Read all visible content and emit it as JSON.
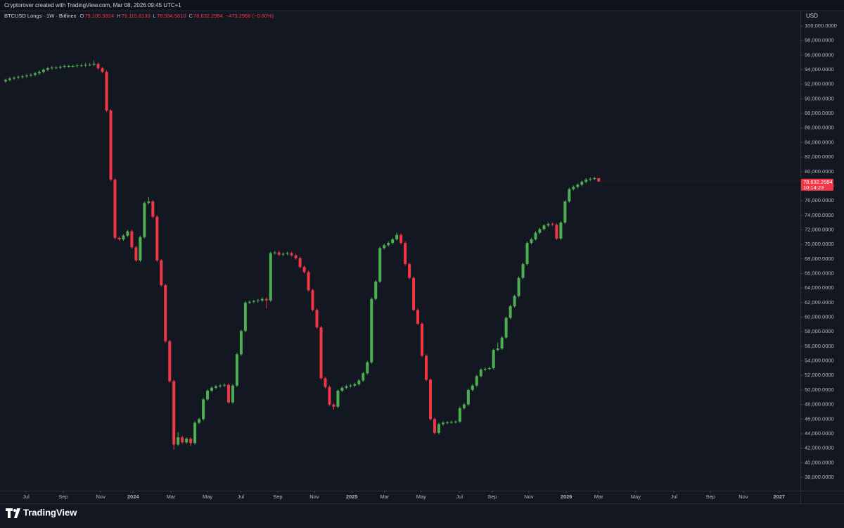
{
  "header": {
    "credit": "Cryptorover created with TradingView.com, Mar 08, 2026 09:45 UTC+1"
  },
  "footer": {
    "brand": "TradingView"
  },
  "chart_data": {
    "type": "candlestick",
    "legend": {
      "symbol": "BTCUSD Longs · 1W · Bitfinex",
      "ohlc": [
        {
          "key": "O",
          "value": "79,105.5924"
        },
        {
          "key": "H",
          "value": "79,115.8130"
        },
        {
          "key": "L",
          "value": "78,594.5610"
        },
        {
          "key": "C",
          "value": "78,632.2984"
        }
      ],
      "change": "−473.2968 (−0.60%)"
    },
    "currency": "USD",
    "last_price_label": "78,632.2984",
    "countdown": "10:14:23",
    "up_color": "#4caf50",
    "down_color": "#f23645",
    "xlim": [
      -1.34,
      188.96
    ],
    "xticks": [
      {
        "value": 4.85,
        "label": "Jul"
      },
      {
        "value": 13.7,
        "label": "Sep"
      },
      {
        "value": 22.6,
        "label": "Nov"
      },
      {
        "value": 30.3,
        "label": "2024"
      },
      {
        "value": 39.3,
        "label": "Mar"
      },
      {
        "value": 48,
        "label": "May"
      },
      {
        "value": 55.9,
        "label": "Jul"
      },
      {
        "value": 64.7,
        "label": "Sep"
      },
      {
        "value": 73.4,
        "label": "Nov"
      },
      {
        "value": 82.3,
        "label": "2025"
      },
      {
        "value": 90.1,
        "label": "Mar"
      },
      {
        "value": 98.8,
        "label": "May"
      },
      {
        "value": 107.9,
        "label": "Jul"
      },
      {
        "value": 115.7,
        "label": "Sep"
      },
      {
        "value": 124.4,
        "label": "Nov"
      },
      {
        "value": 133.3,
        "label": "2026"
      },
      {
        "value": 141,
        "label": "Mar"
      },
      {
        "value": 149.8,
        "label": "May"
      },
      {
        "value": 158.9,
        "label": "Jul"
      },
      {
        "value": 167.6,
        "label": "Sep"
      },
      {
        "value": 175.4,
        "label": "Nov"
      },
      {
        "value": 183.9,
        "label": "2027"
      }
    ],
    "ylim": [
      36160,
      102130
    ],
    "yticks": [
      {
        "value": 100000,
        "label": "100,000.0000"
      },
      {
        "value": 98000,
        "label": "98,000.0000"
      },
      {
        "value": 96000,
        "label": "96,000.0000"
      },
      {
        "value": 94000,
        "label": "94,000.0000"
      },
      {
        "value": 92000,
        "label": "92,000.0000"
      },
      {
        "value": 90000,
        "label": "90,000.0000"
      },
      {
        "value": 88000,
        "label": "88,000.0000"
      },
      {
        "value": 86000,
        "label": "86,000.0000"
      },
      {
        "value": 84000,
        "label": "84,000.0000"
      },
      {
        "value": 82000,
        "label": "82,000.0000"
      },
      {
        "value": 80000,
        "label": "80,000.0000"
      },
      {
        "value": 78000,
        "label": "78,000.0000"
      },
      {
        "value": 76000,
        "label": "76,000.0000"
      },
      {
        "value": 74000,
        "label": "74,000.0000"
      },
      {
        "value": 72000,
        "label": "72,000.0000"
      },
      {
        "value": 70000,
        "label": "70,000.0000"
      },
      {
        "value": 68000,
        "label": "68,000.0000"
      },
      {
        "value": 66000,
        "label": "66,000.0000"
      },
      {
        "value": 64000,
        "label": "64,000.0000"
      },
      {
        "value": 62000,
        "label": "62,000.0000"
      },
      {
        "value": 60000,
        "label": "60,000.0000"
      },
      {
        "value": 58000,
        "label": "58,000.0000"
      },
      {
        "value": 56000,
        "label": "56,000.0000"
      },
      {
        "value": 54000,
        "label": "54,000.0000"
      },
      {
        "value": 52000,
        "label": "52,000.0000"
      },
      {
        "value": 50000,
        "label": "50,000.0000"
      },
      {
        "value": 48000,
        "label": "48,000.0000"
      },
      {
        "value": 46000,
        "label": "46,000.0000"
      },
      {
        "value": 44000,
        "label": "44,000.0000"
      },
      {
        "value": 42000,
        "label": "42,000.0000"
      },
      {
        "value": 40000,
        "label": "40,000.0000"
      },
      {
        "value": 38000,
        "label": "38,000.0000"
      }
    ],
    "open": [
      92400,
      92600,
      92800,
      92900,
      93000,
      93100,
      93200,
      93300,
      93500,
      93700,
      94000,
      94200,
      94300,
      94300,
      94400,
      94500,
      94500,
      94500,
      94600,
      94600,
      94700,
      94700,
      94800,
      94200,
      93700,
      88400,
      78900,
      70900,
      70700,
      71200,
      71800,
      69600,
      67800,
      71000,
      75700,
      75900,
      73800,
      67800,
      64400,
      56700,
      51200,
      42500,
      43500,
      42800,
      43300,
      42700,
      45500,
      46000,
      48700,
      49900,
      50300,
      50500,
      50600,
      50700,
      48300,
      50600,
      54900,
      58100,
      62000,
      62100,
      62200,
      62300,
      62500,
      62300,
      68800,
      68900,
      68600,
      68700,
      68800,
      68500,
      68100,
      66900,
      66200,
      63700,
      61000,
      58600,
      51600,
      50400,
      48000,
      47700,
      49900,
      50300,
      50500,
      50600,
      50800,
      51300,
      52300,
      53800,
      62500,
      64900,
      69500,
      69900,
      70200,
      70700,
      71300,
      70200,
      67300,
      65400,
      61000,
      59100,
      54700,
      51400,
      46000,
      44100,
      45300,
      45500,
      45550,
      45600,
      45650,
      47500,
      48000,
      50000,
      50600,
      51900,
      52800,
      52900,
      53000,
      55500,
      55700,
      57200,
      59900,
      61500,
      62900,
      65400,
      67300,
      70200,
      70700,
      71600,
      72100,
      72600,
      72800,
      72700,
      70800,
      73000,
      75900,
      77600,
      77900,
      78200,
      78600,
      78900,
      79000,
      79105.5924
    ],
    "high": [
      92800,
      93000,
      93100,
      93200,
      93300,
      93400,
      93500,
      93700,
      93900,
      94200,
      94400,
      94500,
      94500,
      94600,
      94700,
      94700,
      94700,
      94800,
      94800,
      94900,
      94900,
      95300,
      95000,
      94400,
      93900,
      88600,
      79100,
      71100,
      71400,
      72000,
      72000,
      69800,
      71200,
      75900,
      76500,
      76100,
      74000,
      68000,
      64600,
      56900,
      51400,
      44200,
      43700,
      43500,
      43500,
      45700,
      46200,
      48900,
      50100,
      50500,
      50700,
      50800,
      50900,
      50900,
      50800,
      55100,
      58300,
      62200,
      62300,
      62400,
      62500,
      62700,
      62700,
      69000,
      69100,
      69100,
      68900,
      69000,
      69000,
      68700,
      68300,
      67100,
      66400,
      63900,
      61200,
      58800,
      51800,
      50600,
      48200,
      50100,
      50500,
      50700,
      50800,
      51000,
      51500,
      52500,
      54000,
      62700,
      65100,
      69700,
      70100,
      70400,
      70900,
      71600,
      71500,
      70400,
      67500,
      65600,
      61200,
      59300,
      54900,
      51600,
      46200,
      45500,
      45700,
      45750,
      45800,
      45850,
      47700,
      48200,
      50200,
      50800,
      52100,
      53000,
      53100,
      53200,
      55700,
      56500,
      57400,
      60100,
      61700,
      63100,
      65600,
      67500,
      70400,
      70900,
      71800,
      72300,
      72800,
      73000,
      73000,
      72900,
      73200,
      76100,
      77800,
      78100,
      78400,
      78800,
      79100,
      79200,
      79300,
      79115.813
    ],
    "low": [
      92200,
      92400,
      92600,
      92700,
      92800,
      92900,
      93000,
      93100,
      93300,
      93500,
      93800,
      94000,
      94100,
      94100,
      94200,
      94300,
      94300,
      94300,
      94400,
      94400,
      94500,
      94500,
      94000,
      93500,
      88200,
      78700,
      70700,
      70500,
      70500,
      71000,
      69400,
      67600,
      67600,
      70800,
      75500,
      73600,
      67600,
      64200,
      56500,
      51000,
      41800,
      42300,
      42600,
      42600,
      42300,
      42500,
      45300,
      45800,
      48500,
      49700,
      50100,
      50300,
      50400,
      48100,
      48100,
      50400,
      54700,
      57900,
      61800,
      61900,
      62000,
      62100,
      61200,
      62100,
      68600,
      68400,
      68400,
      68500,
      68300,
      67900,
      66700,
      66000,
      63500,
      60800,
      58400,
      51400,
      50200,
      47800,
      47300,
      47500,
      49700,
      50100,
      50300,
      50400,
      50600,
      51100,
      52100,
      53600,
      62300,
      64700,
      69300,
      69700,
      70000,
      70500,
      70000,
      67100,
      65200,
      60800,
      58900,
      54500,
      51200,
      45800,
      43900,
      43900,
      45100,
      45300,
      45350,
      45400,
      45450,
      47300,
      47800,
      49800,
      50400,
      51700,
      52600,
      52700,
      52800,
      55300,
      55500,
      57000,
      59700,
      61300,
      62700,
      65200,
      67100,
      70000,
      70500,
      71400,
      71900,
      72400,
      72500,
      70600,
      70600,
      72800,
      75700,
      77400,
      77700,
      78000,
      78400,
      78700,
      78800,
      78594.561
    ],
    "close": [
      92600,
      92800,
      92900,
      93000,
      93100,
      93200,
      93300,
      93500,
      93700,
      94000,
      94200,
      94300,
      94300,
      94400,
      94500,
      94500,
      94500,
      94600,
      94600,
      94700,
      94700,
      94800,
      94200,
      93700,
      88400,
      78900,
      70900,
      70700,
      71200,
      71800,
      69600,
      67800,
      71000,
      75700,
      75900,
      73800,
      67800,
      64400,
      56700,
      51200,
      42500,
      43500,
      42800,
      43300,
      42700,
      45500,
      46000,
      48700,
      49900,
      50300,
      50500,
      50600,
      50700,
      48300,
      50600,
      54900,
      58100,
      62000,
      62100,
      62200,
      62300,
      62500,
      62300,
      68800,
      68900,
      68600,
      68700,
      68800,
      68500,
      68100,
      66900,
      66200,
      63700,
      61000,
      58600,
      51600,
      50400,
      48000,
      47700,
      49900,
      50300,
      50500,
      50600,
      50800,
      51300,
      52300,
      53800,
      62500,
      64900,
      69500,
      69900,
      70200,
      70700,
      71300,
      70200,
      67300,
      65400,
      61000,
      59100,
      54700,
      51400,
      46000,
      44100,
      45300,
      45500,
      45550,
      45600,
      45650,
      47500,
      48000,
      50000,
      50600,
      51900,
      52800,
      52900,
      53000,
      55500,
      55700,
      57200,
      59900,
      61500,
      62900,
      65400,
      67300,
      70200,
      70700,
      71600,
      72100,
      72600,
      72800,
      72700,
      70800,
      73000,
      75900,
      77600,
      77900,
      78200,
      78600,
      78900,
      79000,
      79105.5924,
      78632.2984
    ]
  }
}
